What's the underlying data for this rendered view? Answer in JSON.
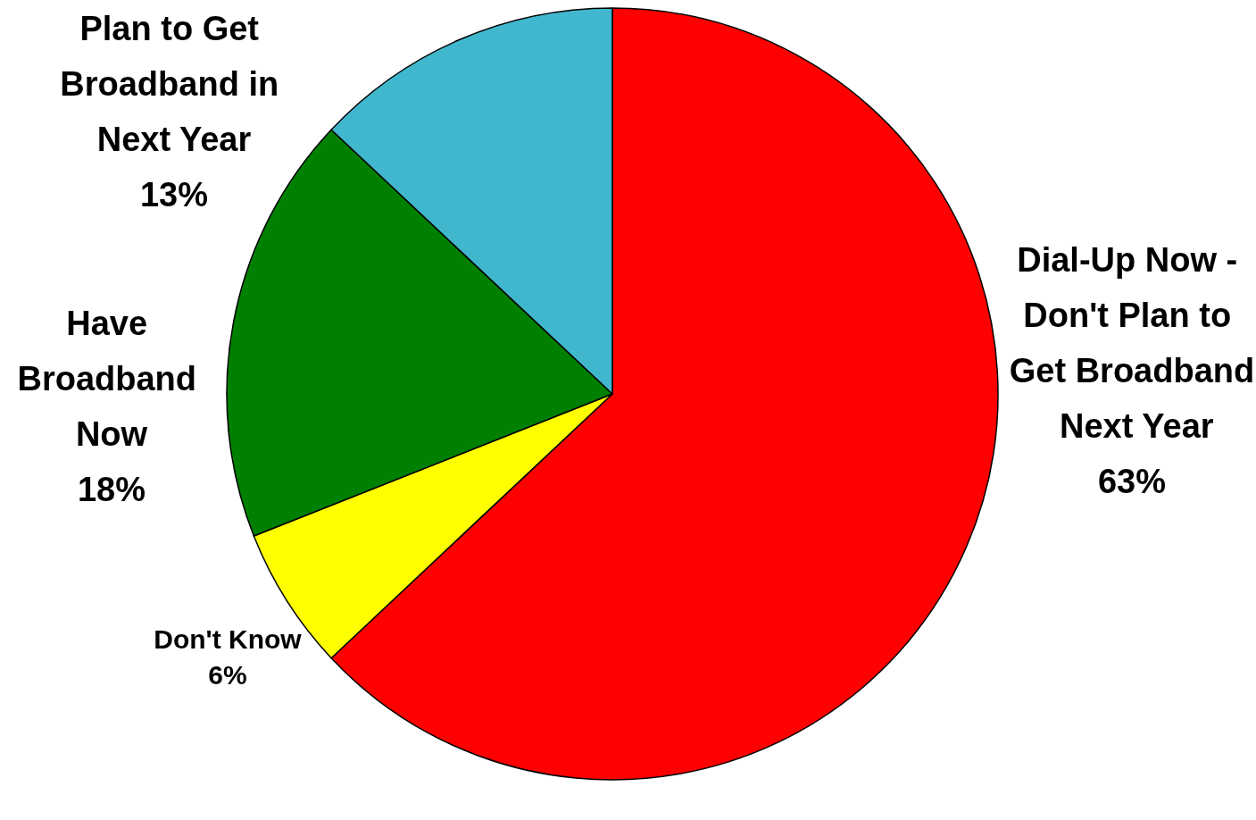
{
  "chart_data": {
    "type": "pie",
    "categories": [
      "Dial-Up Now - Don't Plan to Get Broadband Next Year",
      "Don't Know",
      "Have Broadband Now",
      "Plan to Get Broadband in Next Year"
    ],
    "values": [
      63,
      6,
      18,
      13
    ],
    "colors": [
      "#ff0000",
      "#ffff00",
      "#008000",
      "#41b7cd"
    ],
    "value_labels": [
      "63%",
      "6%",
      "18%",
      "13%"
    ]
  }
}
